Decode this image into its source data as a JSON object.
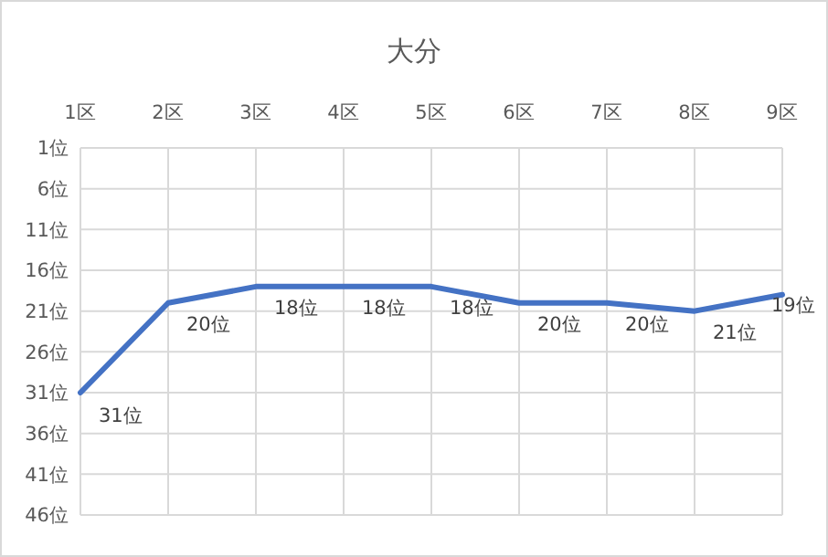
{
  "chart_data": {
    "type": "line",
    "title": "大分",
    "categories": [
      "1区",
      "2区",
      "3区",
      "4区",
      "5区",
      "6区",
      "7区",
      "8区",
      "9区"
    ],
    "series": [
      {
        "color": "#4472c4",
        "values": [
          31,
          20,
          18,
          18,
          18,
          20,
          20,
          21,
          19
        ],
        "value_labels": [
          "31位",
          "20位",
          "18位",
          "18位",
          "18位",
          "20位",
          "20位",
          "21位",
          "19位"
        ]
      }
    ],
    "ylim": [
      46,
      1
    ],
    "yticks": [
      {
        "value": 1,
        "label": "1位"
      },
      {
        "value": 6,
        "label": "6位"
      },
      {
        "value": 11,
        "label": "11位"
      },
      {
        "value": 16,
        "label": "16位"
      },
      {
        "value": 21,
        "label": "21位"
      },
      {
        "value": 26,
        "label": "26位"
      },
      {
        "value": 31,
        "label": "31位"
      },
      {
        "value": 36,
        "label": "36位"
      },
      {
        "value": 41,
        "label": "41位"
      },
      {
        "value": 46,
        "label": "46位"
      }
    ],
    "grid": true,
    "marker": "none",
    "line_style": "solid"
  }
}
